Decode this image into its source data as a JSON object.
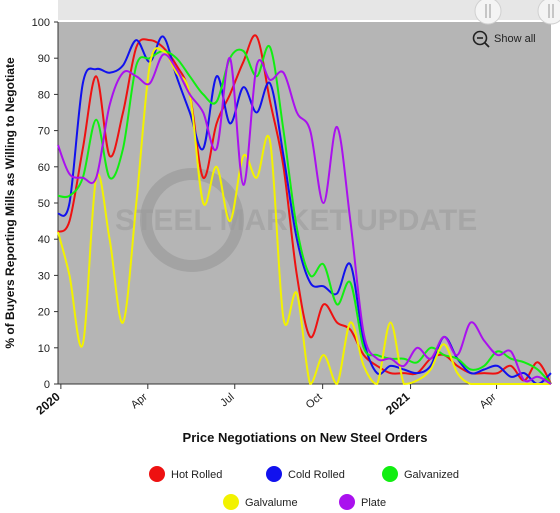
{
  "ui": {
    "show_all": "Show all",
    "watermark": "STEEL MARKET UPDATE"
  },
  "chart_data": {
    "type": "line",
    "title": "",
    "xlabel": "Price Negotiations on New Steel Orders",
    "ylabel": "% of Buyers Reporting Mills as Willing to Negotiate",
    "ylim": [
      0,
      100
    ],
    "yticks": [
      0,
      10,
      20,
      30,
      40,
      50,
      60,
      70,
      80,
      90,
      100
    ],
    "xlim": [
      "2019-12-29",
      "2021-05-28"
    ],
    "xticks": [
      {
        "date": "2020-01-01",
        "label": "2020"
      },
      {
        "date": "2020-04-01",
        "label": "Apr"
      },
      {
        "date": "2020-07-01",
        "label": "Jul"
      },
      {
        "date": "2020-10-01",
        "label": "Oct"
      },
      {
        "date": "2021-01-01",
        "label": "2021"
      },
      {
        "date": "2021-04-01",
        "label": "Apr"
      }
    ],
    "plot_background": "#b5b5b5",
    "grid": false,
    "legend_position": "bottom",
    "series": [
      {
        "name": "Hot Rolled",
        "color": "#ee1111",
        "points": [
          [
            "2019-12-29",
            42
          ],
          [
            "2020-01-10",
            45
          ],
          [
            "2020-01-24",
            65
          ],
          [
            "2020-02-07",
            85
          ],
          [
            "2020-02-21",
            63
          ],
          [
            "2020-03-06",
            75
          ],
          [
            "2020-03-20",
            93
          ],
          [
            "2020-04-03",
            95
          ],
          [
            "2020-04-17",
            93
          ],
          [
            "2020-05-01",
            88
          ],
          [
            "2020-05-15",
            80
          ],
          [
            "2020-05-29",
            57
          ],
          [
            "2020-06-12",
            72
          ],
          [
            "2020-06-26",
            80
          ],
          [
            "2020-07-10",
            89
          ],
          [
            "2020-07-24",
            96
          ],
          [
            "2020-08-07",
            78
          ],
          [
            "2020-08-21",
            60
          ],
          [
            "2020-09-04",
            30
          ],
          [
            "2020-09-18",
            13
          ],
          [
            "2020-10-02",
            22
          ],
          [
            "2020-10-16",
            17
          ],
          [
            "2020-10-30",
            15
          ],
          [
            "2020-11-13",
            8
          ],
          [
            "2020-11-27",
            5
          ],
          [
            "2020-12-11",
            3
          ],
          [
            "2020-12-25",
            3
          ],
          [
            "2021-01-08",
            3
          ],
          [
            "2021-01-22",
            7
          ],
          [
            "2021-02-05",
            8
          ],
          [
            "2021-02-19",
            5
          ],
          [
            "2021-03-05",
            3
          ],
          [
            "2021-03-19",
            3
          ],
          [
            "2021-04-02",
            3
          ],
          [
            "2021-04-16",
            5
          ],
          [
            "2021-04-30",
            1
          ],
          [
            "2021-05-14",
            6
          ],
          [
            "2021-05-28",
            0
          ]
        ]
      },
      {
        "name": "Cold Rolled",
        "color": "#1111ee",
        "points": [
          [
            "2019-12-29",
            47
          ],
          [
            "2020-01-10",
            50
          ],
          [
            "2020-01-24",
            83
          ],
          [
            "2020-02-07",
            87
          ],
          [
            "2020-02-21",
            86
          ],
          [
            "2020-03-06",
            88
          ],
          [
            "2020-03-20",
            95
          ],
          [
            "2020-04-03",
            89
          ],
          [
            "2020-04-17",
            96
          ],
          [
            "2020-05-01",
            85
          ],
          [
            "2020-05-15",
            75
          ],
          [
            "2020-05-29",
            65
          ],
          [
            "2020-06-12",
            85
          ],
          [
            "2020-06-26",
            72
          ],
          [
            "2020-07-10",
            82
          ],
          [
            "2020-07-24",
            75
          ],
          [
            "2020-08-07",
            83
          ],
          [
            "2020-08-21",
            63
          ],
          [
            "2020-09-04",
            40
          ],
          [
            "2020-09-18",
            28
          ],
          [
            "2020-10-02",
            27
          ],
          [
            "2020-10-16",
            25
          ],
          [
            "2020-10-30",
            33
          ],
          [
            "2020-11-13",
            12
          ],
          [
            "2020-11-27",
            3
          ],
          [
            "2020-12-11",
            5
          ],
          [
            "2020-12-25",
            4
          ],
          [
            "2021-01-08",
            3
          ],
          [
            "2021-01-22",
            5
          ],
          [
            "2021-02-05",
            13
          ],
          [
            "2021-02-19",
            7
          ],
          [
            "2021-03-05",
            3
          ],
          [
            "2021-03-19",
            4
          ],
          [
            "2021-04-02",
            5
          ],
          [
            "2021-04-16",
            2
          ],
          [
            "2021-04-30",
            3
          ],
          [
            "2021-05-14",
            0
          ],
          [
            "2021-05-28",
            3
          ]
        ]
      },
      {
        "name": "Galvanized",
        "color": "#11ee11",
        "points": [
          [
            "2019-12-29",
            52
          ],
          [
            "2020-01-10",
            52
          ],
          [
            "2020-01-24",
            57
          ],
          [
            "2020-02-07",
            73
          ],
          [
            "2020-02-21",
            57
          ],
          [
            "2020-03-06",
            65
          ],
          [
            "2020-03-20",
            88
          ],
          [
            "2020-04-03",
            90
          ],
          [
            "2020-04-17",
            92
          ],
          [
            "2020-05-01",
            90
          ],
          [
            "2020-05-15",
            85
          ],
          [
            "2020-05-29",
            80
          ],
          [
            "2020-06-12",
            78
          ],
          [
            "2020-06-26",
            90
          ],
          [
            "2020-07-10",
            92
          ],
          [
            "2020-07-24",
            85
          ],
          [
            "2020-08-07",
            93
          ],
          [
            "2020-08-21",
            70
          ],
          [
            "2020-09-04",
            43
          ],
          [
            "2020-09-18",
            30
          ],
          [
            "2020-10-02",
            33
          ],
          [
            "2020-10-16",
            22
          ],
          [
            "2020-10-30",
            28
          ],
          [
            "2020-11-13",
            10
          ],
          [
            "2020-11-27",
            8
          ],
          [
            "2020-12-11",
            7
          ],
          [
            "2020-12-25",
            7
          ],
          [
            "2021-01-08",
            6
          ],
          [
            "2021-01-22",
            10
          ],
          [
            "2021-02-05",
            8
          ],
          [
            "2021-02-19",
            7
          ],
          [
            "2021-03-05",
            4
          ],
          [
            "2021-03-19",
            5
          ],
          [
            "2021-04-02",
            9
          ],
          [
            "2021-04-16",
            7
          ],
          [
            "2021-04-30",
            6
          ],
          [
            "2021-05-14",
            4
          ],
          [
            "2021-05-28",
            0
          ]
        ]
      },
      {
        "name": "Galvalume",
        "color": "#f2f200",
        "points": [
          [
            "2019-12-29",
            42
          ],
          [
            "2020-01-10",
            30
          ],
          [
            "2020-01-24",
            11
          ],
          [
            "2020-02-07",
            57
          ],
          [
            "2020-02-21",
            40
          ],
          [
            "2020-03-06",
            17
          ],
          [
            "2020-03-20",
            50
          ],
          [
            "2020-04-03",
            88
          ],
          [
            "2020-04-17",
            92
          ],
          [
            "2020-05-01",
            86
          ],
          [
            "2020-05-15",
            80
          ],
          [
            "2020-05-29",
            50
          ],
          [
            "2020-06-12",
            60
          ],
          [
            "2020-06-26",
            45
          ],
          [
            "2020-07-10",
            63
          ],
          [
            "2020-07-24",
            57
          ],
          [
            "2020-08-07",
            67
          ],
          [
            "2020-08-21",
            18
          ],
          [
            "2020-09-04",
            25
          ],
          [
            "2020-09-18",
            0
          ],
          [
            "2020-10-02",
            8
          ],
          [
            "2020-10-16",
            0
          ],
          [
            "2020-10-30",
            17
          ],
          [
            "2020-11-13",
            5
          ],
          [
            "2020-11-27",
            0
          ],
          [
            "2020-12-11",
            17
          ],
          [
            "2020-12-25",
            0
          ],
          [
            "2021-01-08",
            1
          ],
          [
            "2021-01-22",
            4
          ],
          [
            "2021-02-05",
            11
          ],
          [
            "2021-02-19",
            3
          ],
          [
            "2021-03-05",
            0
          ],
          [
            "2021-03-19",
            0
          ],
          [
            "2021-04-02",
            0
          ],
          [
            "2021-04-16",
            0
          ],
          [
            "2021-04-30",
            0
          ],
          [
            "2021-05-14",
            0
          ],
          [
            "2021-05-28",
            0
          ]
        ]
      },
      {
        "name": "Plate",
        "color": "#aa11ee",
        "points": [
          [
            "2019-12-29",
            66
          ],
          [
            "2020-01-10",
            58
          ],
          [
            "2020-01-24",
            57
          ],
          [
            "2020-02-07",
            57
          ],
          [
            "2020-02-21",
            77
          ],
          [
            "2020-03-06",
            86
          ],
          [
            "2020-03-20",
            85
          ],
          [
            "2020-04-03",
            83
          ],
          [
            "2020-04-17",
            91
          ],
          [
            "2020-05-01",
            87
          ],
          [
            "2020-05-15",
            80
          ],
          [
            "2020-05-29",
            75
          ],
          [
            "2020-06-12",
            65
          ],
          [
            "2020-06-26",
            90
          ],
          [
            "2020-07-10",
            55
          ],
          [
            "2020-07-24",
            88
          ],
          [
            "2020-08-07",
            84
          ],
          [
            "2020-08-21",
            86
          ],
          [
            "2020-09-04",
            75
          ],
          [
            "2020-09-18",
            70
          ],
          [
            "2020-10-02",
            50
          ],
          [
            "2020-10-16",
            71
          ],
          [
            "2020-10-30",
            45
          ],
          [
            "2020-11-13",
            14
          ],
          [
            "2020-11-27",
            7
          ],
          [
            "2020-12-11",
            7
          ],
          [
            "2020-12-25",
            5
          ],
          [
            "2021-01-08",
            10
          ],
          [
            "2021-01-22",
            7
          ],
          [
            "2021-02-05",
            13
          ],
          [
            "2021-02-19",
            8
          ],
          [
            "2021-03-05",
            17
          ],
          [
            "2021-03-19",
            12
          ],
          [
            "2021-04-02",
            8
          ],
          [
            "2021-04-16",
            9
          ],
          [
            "2021-04-30",
            1
          ],
          [
            "2021-05-14",
            2
          ],
          [
            "2021-05-28",
            0
          ]
        ]
      }
    ]
  }
}
